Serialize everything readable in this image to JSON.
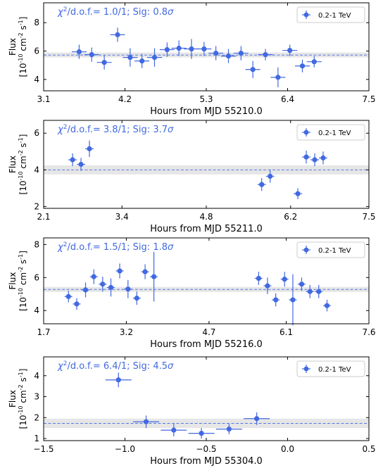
{
  "style": {
    "marker_color": "#4169e1",
    "band_color": "#e6e6e6",
    "annotation_color": "#4169e1"
  },
  "chart_data": [
    {
      "type": "scatter",
      "ylabel": [
        "Flux",
        "[10",
        "-10",
        " cm",
        "-2",
        " s",
        "-1",
        "]"
      ],
      "xlabel": "Hours from MJD 55210.0",
      "annotation": {
        "prefix": "χ",
        "sup": "2",
        "rest": "/d.o.f.= 1.0/1; Sig: 0.8",
        "sigma": "σ"
      },
      "legend": {
        "label": "0.2-1 TeV",
        "position": "top-right"
      },
      "xlim": [
        3.1,
        7.5
      ],
      "ylim": [
        3.2,
        9.4
      ],
      "xticks": [
        3.1,
        4.2,
        5.3,
        6.4,
        7.5
      ],
      "xtick_labels": [
        "3.1",
        "4.2",
        "5.3",
        "6.4",
        "7.5"
      ],
      "yticks": [
        4,
        6,
        8
      ],
      "ytick_labels": [
        "4",
        "6",
        "8"
      ],
      "mean": 5.72,
      "band": [
        5.55,
        5.9
      ],
      "points": [
        {
          "x": 3.58,
          "y": 5.95,
          "xerr": 0.1,
          "yerr": 0.5
        },
        {
          "x": 3.75,
          "y": 5.75,
          "xerr": 0.1,
          "yerr": 0.5
        },
        {
          "x": 3.92,
          "y": 5.2,
          "xerr": 0.1,
          "yerr": 0.5
        },
        {
          "x": 4.1,
          "y": 7.15,
          "xerr": 0.1,
          "yerr": 0.5
        },
        {
          "x": 4.27,
          "y": 5.55,
          "xerr": 0.1,
          "yerr": 0.65
        },
        {
          "x": 4.43,
          "y": 5.3,
          "xerr": 0.1,
          "yerr": 0.5
        },
        {
          "x": 4.6,
          "y": 5.55,
          "xerr": 0.1,
          "yerr": 0.65
        },
        {
          "x": 4.77,
          "y": 6.1,
          "xerr": 0.1,
          "yerr": 0.5
        },
        {
          "x": 4.93,
          "y": 6.2,
          "xerr": 0.1,
          "yerr": 0.55
        },
        {
          "x": 5.1,
          "y": 6.15,
          "xerr": 0.1,
          "yerr": 0.7
        },
        {
          "x": 5.27,
          "y": 6.15,
          "xerr": 0.1,
          "yerr": 0.5
        },
        {
          "x": 5.43,
          "y": 5.85,
          "xerr": 0.1,
          "yerr": 0.5
        },
        {
          "x": 5.6,
          "y": 5.65,
          "xerr": 0.1,
          "yerr": 0.5
        },
        {
          "x": 5.77,
          "y": 5.85,
          "xerr": 0.1,
          "yerr": 0.5
        },
        {
          "x": 5.93,
          "y": 4.7,
          "xerr": 0.1,
          "yerr": 0.6
        },
        {
          "x": 6.1,
          "y": 5.75,
          "xerr": 0.1,
          "yerr": 0.4
        },
        {
          "x": 6.27,
          "y": 4.15,
          "xerr": 0.1,
          "yerr": 0.7
        },
        {
          "x": 6.43,
          "y": 6.05,
          "xerr": 0.1,
          "yerr": 0.4
        },
        {
          "x": 6.6,
          "y": 4.95,
          "xerr": 0.1,
          "yerr": 0.45
        },
        {
          "x": 6.76,
          "y": 5.25,
          "xerr": 0.1,
          "yerr": 0.4
        }
      ]
    },
    {
      "type": "scatter",
      "ylabel": [
        "Flux",
        "[10",
        "-10",
        " cm",
        "-2",
        " s",
        "-1",
        "]"
      ],
      "xlabel": "Hours from MJD 55211.0",
      "annotation": {
        "prefix": "χ",
        "sup": "2",
        "rest": "/d.o.f.= 3.8/1; Sig: 3.7",
        "sigma": "σ"
      },
      "legend": {
        "label": "0.2-1 TeV",
        "position": "top-right"
      },
      "xlim": [
        2.1,
        7.5
      ],
      "ylim": [
        1.9,
        6.7
      ],
      "xticks": [
        2.1,
        3.4,
        4.8,
        6.2,
        7.5
      ],
      "xtick_labels": [
        "2.1",
        "3.4",
        "4.8",
        "6.2",
        "7.5"
      ],
      "yticks": [
        2,
        4,
        6
      ],
      "ytick_labels": [
        "2",
        "4",
        "6"
      ],
      "mean": 4.0,
      "band": [
        3.75,
        4.25
      ],
      "points": [
        {
          "x": 2.58,
          "y": 4.55,
          "xerr": 0.07,
          "yerr": 0.35
        },
        {
          "x": 2.72,
          "y": 4.3,
          "xerr": 0.07,
          "yerr": 0.35
        },
        {
          "x": 2.86,
          "y": 5.15,
          "xerr": 0.07,
          "yerr": 0.45
        },
        {
          "x": 5.72,
          "y": 3.2,
          "xerr": 0.07,
          "yerr": 0.35
        },
        {
          "x": 5.86,
          "y": 3.65,
          "xerr": 0.07,
          "yerr": 0.35
        },
        {
          "x": 6.32,
          "y": 2.7,
          "xerr": 0.07,
          "yerr": 0.3
        },
        {
          "x": 6.46,
          "y": 4.7,
          "xerr": 0.07,
          "yerr": 0.35
        },
        {
          "x": 6.6,
          "y": 4.55,
          "xerr": 0.07,
          "yerr": 0.35
        },
        {
          "x": 6.74,
          "y": 4.65,
          "xerr": 0.07,
          "yerr": 0.35
        }
      ]
    },
    {
      "type": "scatter",
      "ylabel": [
        "Flux",
        "[10",
        "-10",
        " cm",
        "-2",
        " s",
        "-1",
        "]"
      ],
      "xlabel": "Hours from MJD 55216.0",
      "annotation": {
        "prefix": "χ",
        "sup": "2",
        "rest": "/d.o.f.= 1.5/1; Sig: 1.8",
        "sigma": "σ"
      },
      "legend": {
        "label": "0.2-1 TeV",
        "position": "top-right"
      },
      "xlim": [
        1.7,
        7.6
      ],
      "ylim": [
        3.2,
        8.4
      ],
      "xticks": [
        1.7,
        3.2,
        4.7,
        6.1,
        7.6
      ],
      "xtick_labels": [
        "1.7",
        "3.2",
        "4.7",
        "6.1",
        "7.6"
      ],
      "yticks": [
        4,
        6,
        8
      ],
      "ytick_labels": [
        "4",
        "6",
        "8"
      ],
      "mean": 5.28,
      "band": [
        5.13,
        5.43
      ],
      "points": [
        {
          "x": 2.15,
          "y": 4.85,
          "xerr": 0.07,
          "yerr": 0.35
        },
        {
          "x": 2.3,
          "y": 4.4,
          "xerr": 0.07,
          "yerr": 0.35
        },
        {
          "x": 2.46,
          "y": 5.25,
          "xerr": 0.07,
          "yerr": 0.45
        },
        {
          "x": 2.61,
          "y": 6.05,
          "xerr": 0.07,
          "yerr": 0.45
        },
        {
          "x": 2.77,
          "y": 5.6,
          "xerr": 0.07,
          "yerr": 0.45
        },
        {
          "x": 2.92,
          "y": 5.4,
          "xerr": 0.07,
          "yerr": 0.55
        },
        {
          "x": 3.08,
          "y": 6.4,
          "xerr": 0.07,
          "yerr": 0.45
        },
        {
          "x": 3.23,
          "y": 5.3,
          "xerr": 0.07,
          "yerr": 0.55
        },
        {
          "x": 3.39,
          "y": 4.75,
          "xerr": 0.07,
          "yerr": 0.4
        },
        {
          "x": 3.54,
          "y": 6.35,
          "xerr": 0.07,
          "yerr": 0.45
        },
        {
          "x": 3.7,
          "y": 6.05,
          "xerr": 0.07,
          "yerr": 1.5
        },
        {
          "x": 5.6,
          "y": 5.95,
          "xerr": 0.07,
          "yerr": 0.4
        },
        {
          "x": 5.76,
          "y": 5.5,
          "xerr": 0.07,
          "yerr": 0.5
        },
        {
          "x": 5.91,
          "y": 4.65,
          "xerr": 0.07,
          "yerr": 0.4
        },
        {
          "x": 6.07,
          "y": 5.9,
          "xerr": 0.07,
          "yerr": 0.45
        },
        {
          "x": 6.22,
          "y": 4.65,
          "xerr": 0.07,
          "yerr": 1.55
        },
        {
          "x": 6.38,
          "y": 5.6,
          "xerr": 0.07,
          "yerr": 0.4
        },
        {
          "x": 6.53,
          "y": 5.15,
          "xerr": 0.07,
          "yerr": 0.4
        },
        {
          "x": 6.69,
          "y": 5.15,
          "xerr": 0.07,
          "yerr": 0.4
        },
        {
          "x": 6.84,
          "y": 4.3,
          "xerr": 0.07,
          "yerr": 0.35
        }
      ]
    },
    {
      "type": "scatter",
      "ylabel": [
        "Flux",
        "[10",
        "-10",
        " cm",
        "-2",
        " s",
        "-1",
        "]"
      ],
      "xlabel": "Hours from MJD 55304.0",
      "annotation": {
        "prefix": "χ",
        "sup": "2",
        "rest": "/d.o.f.= 6.4/1; Sig: 4.5",
        "sigma": "σ"
      },
      "legend": {
        "label": "0.2-1 TeV",
        "position": "top-right"
      },
      "xlim": [
        -1.5,
        0.5
      ],
      "ylim": [
        0.9,
        4.9
      ],
      "xticks": [
        -1.5,
        -1.0,
        -0.5,
        0.0,
        0.5
      ],
      "xtick_labels": [
        "−1.5",
        "−1.0",
        "−0.5",
        "0.0",
        "0.5"
      ],
      "yticks": [
        1,
        2,
        3,
        4
      ],
      "ytick_labels": [
        "1",
        "2",
        "3",
        "4"
      ],
      "mean": 1.72,
      "band": [
        1.5,
        1.95
      ],
      "points": [
        {
          "x": -1.04,
          "y": 3.8,
          "xerr": 0.08,
          "yerr": 0.35
        },
        {
          "x": -0.87,
          "y": 1.8,
          "xerr": 0.08,
          "yerr": 0.3
        },
        {
          "x": -0.7,
          "y": 1.4,
          "xerr": 0.08,
          "yerr": 0.3
        },
        {
          "x": -0.53,
          "y": 1.25,
          "xerr": 0.08,
          "yerr": 0.25
        },
        {
          "x": -0.36,
          "y": 1.45,
          "xerr": 0.08,
          "yerr": 0.25
        },
        {
          "x": -0.19,
          "y": 1.95,
          "xerr": 0.08,
          "yerr": 0.3
        }
      ]
    }
  ]
}
